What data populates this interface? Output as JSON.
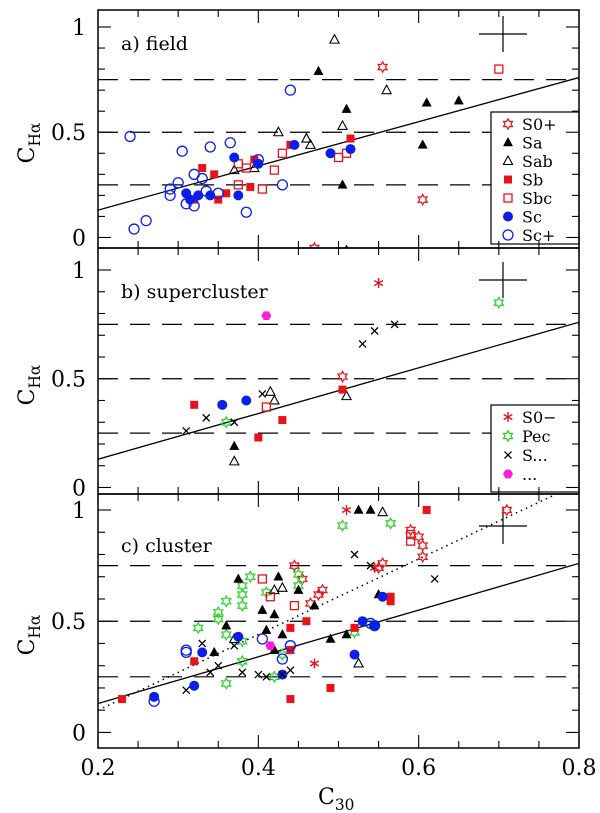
{
  "chart_data": [
    {
      "type": "scatter",
      "panel": "a",
      "title": "a) field",
      "xlabel": "C30",
      "ylabel": "CHα",
      "xlim": [
        0.2,
        0.8
      ],
      "ylim": [
        -0.05,
        1.05
      ],
      "yticks": [
        "0",
        "0.5",
        "1"
      ],
      "hlines": [
        0.25,
        0.5,
        0.75
      ],
      "fit_line": [
        [
          0.2,
          0.13
        ],
        [
          0.8,
          0.76
        ]
      ],
      "legend_position": "right",
      "series": [
        {
          "name": "S0+",
          "marker": "star-open",
          "color": "#e8121b",
          "points": [
            [
              0.555,
              0.81
            ],
            [
              0.605,
              0.18
            ],
            [
              0.47,
              -0.05
            ]
          ]
        },
        {
          "name": "Sa",
          "marker": "triangle-filled",
          "color": "#000000",
          "points": [
            [
              0.475,
              0.79
            ],
            [
              0.51,
              0.61
            ],
            [
              0.61,
              0.64
            ],
            [
              0.65,
              0.65
            ],
            [
              0.505,
              0.25
            ],
            [
              0.605,
              0.44
            ],
            [
              0.51,
              -0.06
            ]
          ]
        },
        {
          "name": "Sab",
          "marker": "triangle-open",
          "color": "#000000",
          "points": [
            [
              0.495,
              0.94
            ],
            [
              0.56,
              0.7
            ],
            [
              0.425,
              0.5
            ],
            [
              0.505,
              0.53
            ],
            [
              0.465,
              0.44
            ],
            [
              0.37,
              0.32
            ],
            [
              0.395,
              0.33
            ],
            [
              0.46,
              0.47
            ]
          ]
        },
        {
          "name": "Sb",
          "marker": "square-filled",
          "color": "#e8121b",
          "points": [
            [
              0.515,
              0.47
            ],
            [
              0.33,
              0.33
            ],
            [
              0.345,
              0.3
            ],
            [
              0.36,
              0.21
            ],
            [
              0.35,
              0.18
            ],
            [
              0.32,
              0.18
            ],
            [
              0.395,
              0.37
            ],
            [
              0.44,
              0.44
            ],
            [
              0.39,
              0.24
            ]
          ]
        },
        {
          "name": "Sbc",
          "marker": "square-open",
          "color": "#e8121b",
          "points": [
            [
              0.7,
              0.8
            ],
            [
              0.43,
              0.4
            ],
            [
              0.375,
              0.25
            ],
            [
              0.385,
              0.33
            ],
            [
              0.405,
              0.23
            ],
            [
              0.42,
              0.32
            ],
            [
              0.5,
              0.38
            ],
            [
              0.51,
              0.4
            ],
            [
              0.375,
              0.35
            ]
          ]
        },
        {
          "name": "Sc",
          "marker": "circle-filled",
          "color": "#0a1fe8",
          "points": [
            [
              0.37,
              0.38
            ],
            [
              0.375,
              0.2
            ],
            [
              0.34,
              0.2
            ],
            [
              0.315,
              0.18
            ],
            [
              0.31,
              0.21
            ],
            [
              0.445,
              0.44
            ],
            [
              0.49,
              0.4
            ],
            [
              0.515,
              0.42
            ],
            [
              0.325,
              0.2
            ],
            [
              0.4,
              0.35
            ]
          ]
        },
        {
          "name": "Sc+",
          "marker": "circle-open",
          "color": "#0a1fe8",
          "points": [
            [
              0.44,
              0.7
            ],
            [
              0.24,
              0.48
            ],
            [
              0.3,
              0.26
            ],
            [
              0.305,
              0.41
            ],
            [
              0.34,
              0.43
            ],
            [
              0.365,
              0.45
            ],
            [
              0.32,
              0.3
            ],
            [
              0.33,
              0.28
            ],
            [
              0.335,
              0.22
            ],
            [
              0.245,
              0.04
            ],
            [
              0.26,
              0.08
            ],
            [
              0.29,
              0.23
            ],
            [
              0.29,
              0.2
            ],
            [
              0.31,
              0.16
            ],
            [
              0.32,
              0.15
            ],
            [
              0.35,
              0.21
            ],
            [
              0.385,
              0.12
            ],
            [
              0.43,
              0.25
            ],
            [
              0.4,
              0.37
            ]
          ]
        }
      ]
    },
    {
      "type": "scatter",
      "panel": "b",
      "title": "b) supercluster",
      "xlabel": "C30",
      "ylabel": "CHα",
      "xlim": [
        0.2,
        0.8
      ],
      "ylim": [
        -0.05,
        1.05
      ],
      "yticks": [
        "0",
        "0.5",
        "1"
      ],
      "hlines": [
        0.25,
        0.5,
        0.75
      ],
      "fit_line": [
        [
          0.2,
          0.13
        ],
        [
          0.8,
          0.76
        ]
      ],
      "legend_position": "right",
      "series": [
        {
          "name": "S0−",
          "marker": "asterisk",
          "color": "#e8121b",
          "points": [
            [
              0.55,
              0.94
            ]
          ]
        },
        {
          "name": "Pec",
          "marker": "star-open",
          "color": "#2ad12a",
          "points": [
            [
              0.7,
              0.85
            ],
            [
              0.36,
              0.3
            ]
          ]
        },
        {
          "name": "S...",
          "marker": "cross",
          "color": "#000000",
          "points": [
            [
              0.545,
              0.72
            ],
            [
              0.57,
              0.75
            ],
            [
              0.53,
              0.66
            ],
            [
              0.405,
              0.43
            ],
            [
              0.31,
              0.26
            ],
            [
              0.335,
              0.32
            ],
            [
              0.37,
              0.3
            ]
          ]
        },
        {
          "name": "...",
          "marker": "hexagon-filled",
          "color": "#ff1fd6",
          "points": [
            [
              0.41,
              0.79
            ]
          ]
        },
        {
          "name": "S0+",
          "marker": "star-open",
          "color": "#e8121b",
          "in_legend": false,
          "points": [
            [
              0.505,
              0.51
            ]
          ]
        },
        {
          "name": "Sa",
          "marker": "triangle-filled",
          "color": "#000000",
          "in_legend": false,
          "points": [
            [
              0.37,
              0.19
            ]
          ]
        },
        {
          "name": "Sab",
          "marker": "triangle-open",
          "color": "#000000",
          "in_legend": false,
          "points": [
            [
              0.415,
              0.44
            ],
            [
              0.51,
              0.42
            ],
            [
              0.37,
              0.12
            ],
            [
              0.42,
              0.4
            ]
          ]
        },
        {
          "name": "Sb",
          "marker": "square-filled",
          "color": "#e8121b",
          "in_legend": false,
          "points": [
            [
              0.32,
              0.38
            ],
            [
              0.4,
              0.23
            ],
            [
              0.43,
              0.31
            ],
            [
              0.505,
              0.45
            ]
          ]
        },
        {
          "name": "Sbc",
          "marker": "square-open",
          "color": "#e8121b",
          "in_legend": false,
          "points": [
            [
              0.41,
              0.37
            ]
          ]
        },
        {
          "name": "Sc",
          "marker": "circle-filled",
          "color": "#0a1fe8",
          "in_legend": false,
          "points": [
            [
              0.355,
              0.38
            ],
            [
              0.385,
              0.4
            ]
          ]
        }
      ]
    },
    {
      "type": "scatter",
      "panel": "c",
      "title": "c) cluster",
      "xlabel": "C30",
      "ylabel": "CHα",
      "xlim": [
        0.2,
        0.8
      ],
      "ylim": [
        -0.05,
        1.05
      ],
      "yticks": [
        "0",
        "0.5",
        "1"
      ],
      "xticks": [
        "0.2",
        "0.4",
        "0.6",
        "0.8"
      ],
      "hlines": [
        0.25,
        0.5,
        0.75
      ],
      "fit_line": [
        [
          0.2,
          0.13
        ],
        [
          0.8,
          0.76
        ]
      ],
      "dotted_line": [
        [
          0.2,
          0.1
        ],
        [
          0.8,
          1.12
        ]
      ],
      "series": [
        {
          "name": "S0+",
          "marker": "star-open",
          "color": "#e8121b",
          "points": [
            [
              0.71,
              1.0
            ],
            [
              0.59,
              0.91
            ],
            [
              0.6,
              0.88
            ],
            [
              0.605,
              0.84
            ],
            [
              0.605,
              0.79
            ],
            [
              0.555,
              0.76
            ],
            [
              0.55,
              0.74
            ],
            [
              0.445,
              0.75
            ],
            [
              0.455,
              0.69
            ],
            [
              0.475,
              0.62
            ],
            [
              0.48,
              0.64
            ],
            [
              0.465,
              0.58
            ]
          ]
        },
        {
          "name": "S0−",
          "marker": "asterisk",
          "color": "#e8121b",
          "points": [
            [
              0.51,
              1.0
            ],
            [
              0.545,
              0.74
            ],
            [
              0.47,
              0.31
            ]
          ]
        },
        {
          "name": "Pec",
          "marker": "star-open",
          "color": "#2ad12a",
          "points": [
            [
              0.505,
              0.93
            ],
            [
              0.565,
              0.94
            ],
            [
              0.39,
              0.7
            ],
            [
              0.38,
              0.66
            ],
            [
              0.38,
              0.62
            ],
            [
              0.41,
              0.63
            ],
            [
              0.45,
              0.71
            ],
            [
              0.45,
              0.66
            ],
            [
              0.36,
              0.59
            ],
            [
              0.38,
              0.57
            ],
            [
              0.35,
              0.54
            ],
            [
              0.35,
              0.51
            ],
            [
              0.325,
              0.47
            ],
            [
              0.36,
              0.44
            ],
            [
              0.38,
              0.41
            ],
            [
              0.38,
              0.32
            ],
            [
              0.36,
              0.22
            ],
            [
              0.42,
              0.25
            ],
            [
              0.52,
              0.45
            ],
            [
              0.43,
              0.35
            ]
          ]
        },
        {
          "name": "Sa",
          "marker": "triangle-filled",
          "color": "#000000",
          "points": [
            [
              0.525,
              1.0
            ],
            [
              0.54,
              1.0
            ],
            [
              0.375,
              0.69
            ],
            [
              0.425,
              0.7
            ],
            [
              0.45,
              0.64
            ],
            [
              0.405,
              0.55
            ],
            [
              0.42,
              0.53
            ],
            [
              0.47,
              0.57
            ],
            [
              0.36,
              0.48
            ],
            [
              0.41,
              0.46
            ],
            [
              0.43,
              0.44
            ],
            [
              0.51,
              0.44
            ],
            [
              0.345,
              0.36
            ],
            [
              0.42,
              0.37
            ],
            [
              0.49,
              0.42
            ],
            [
              0.55,
              0.62
            ]
          ]
        },
        {
          "name": "Sab",
          "marker": "triangle-open",
          "color": "#000000",
          "points": [
            [
              0.555,
              0.99
            ],
            [
              0.43,
              0.65
            ],
            [
              0.42,
              0.64
            ],
            [
              0.525,
              0.31
            ],
            [
              0.37,
              0.42
            ]
          ]
        },
        {
          "name": "Sb",
          "marker": "square-filled",
          "color": "#e8121b",
          "points": [
            [
              0.61,
              1.0
            ],
            [
              0.565,
              0.61
            ],
            [
              0.565,
              0.59
            ],
            [
              0.44,
              0.47
            ],
            [
              0.44,
              0.37
            ],
            [
              0.44,
              0.15
            ],
            [
              0.49,
              0.2
            ],
            [
              0.23,
              0.15
            ],
            [
              0.32,
              0.32
            ],
            [
              0.52,
              0.47
            ],
            [
              0.46,
              0.5
            ]
          ]
        },
        {
          "name": "Sbc",
          "marker": "square-open",
          "color": "#e8121b",
          "points": [
            [
              0.405,
              0.69
            ],
            [
              0.415,
              0.61
            ],
            [
              0.59,
              0.86
            ],
            [
              0.59,
              0.89
            ],
            [
              0.445,
              0.57
            ]
          ]
        },
        {
          "name": "Sc",
          "marker": "circle-filled",
          "color": "#0a1fe8",
          "points": [
            [
              0.27,
              0.16
            ],
            [
              0.32,
              0.21
            ],
            [
              0.33,
              0.36
            ],
            [
              0.375,
              0.43
            ],
            [
              0.43,
              0.26
            ],
            [
              0.52,
              0.35
            ],
            [
              0.555,
              0.61
            ],
            [
              0.53,
              0.5
            ],
            [
              0.545,
              0.48
            ]
          ]
        },
        {
          "name": "Sc+",
          "marker": "circle-open",
          "color": "#0a1fe8",
          "points": [
            [
              0.27,
              0.14
            ],
            [
              0.31,
              0.36
            ],
            [
              0.31,
              0.37
            ],
            [
              0.405,
              0.42
            ],
            [
              0.43,
              0.33
            ],
            [
              0.44,
              0.39
            ],
            [
              0.545,
              0.48
            ],
            [
              0.54,
              0.49
            ]
          ]
        },
        {
          "name": "S...",
          "marker": "cross",
          "color": "#000000",
          "points": [
            [
              0.52,
              0.8
            ],
            [
              0.62,
              0.69
            ],
            [
              0.54,
              0.75
            ],
            [
              0.31,
              0.19
            ],
            [
              0.33,
              0.4
            ],
            [
              0.37,
              0.39
            ],
            [
              0.38,
              0.27
            ],
            [
              0.4,
              0.26
            ],
            [
              0.41,
              0.25
            ],
            [
              0.43,
              0.26
            ],
            [
              0.44,
              0.28
            ],
            [
              0.35,
              0.3
            ],
            [
              0.34,
              0.27
            ]
          ]
        },
        {
          "name": "...",
          "marker": "hexagon-filled",
          "color": "#ff1fd6",
          "points": [
            [
              0.415,
              0.39
            ]
          ]
        }
      ]
    }
  ]
}
